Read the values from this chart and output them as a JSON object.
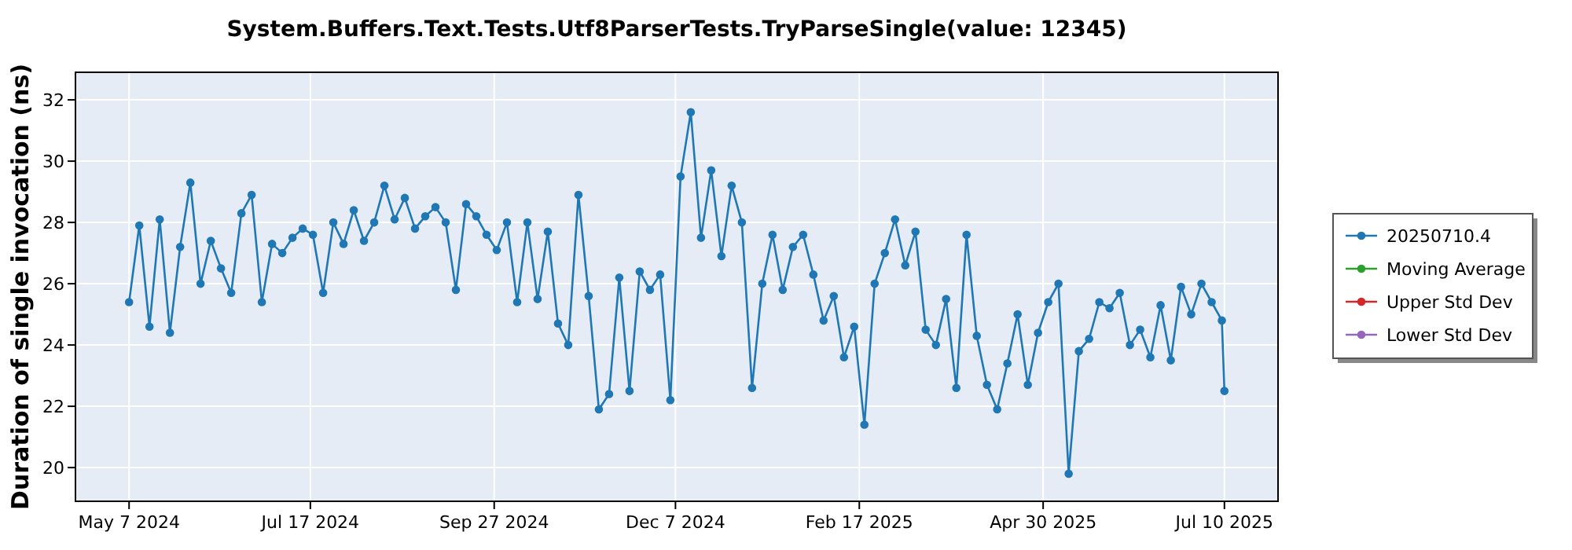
{
  "chart_data": {
    "type": "line",
    "title": "System.Buffers.Text.Tests.Utf8ParserTests.TryParseSingle(value: 12345)",
    "ylabel": "Duration of single invocation (ns)",
    "xlim": [
      "2024-04-16",
      "2025-07-31"
    ],
    "xticks": [
      {
        "value": "2024-05-07",
        "label": "May 7 2024"
      },
      {
        "value": "2024-07-17",
        "label": "Jul 17 2024"
      },
      {
        "value": "2024-09-27",
        "label": "Sep 27 2024"
      },
      {
        "value": "2024-12-07",
        "label": "Dec 7 2024"
      },
      {
        "value": "2025-02-17",
        "label": "Feb 17 2025"
      },
      {
        "value": "2025-04-30",
        "label": "Apr 30 2025"
      },
      {
        "value": "2025-07-10",
        "label": "Jul 10 2025"
      }
    ],
    "ylim": [
      18.9,
      32.9
    ],
    "yticks": [
      20,
      22,
      24,
      26,
      28,
      30,
      32
    ],
    "grid": true,
    "legend": "right",
    "marker": "circle",
    "series": [
      {
        "name": "20250710.4",
        "color": "#1f77b4",
        "x": [
          "2024-05-07",
          "2024-05-11",
          "2024-05-15",
          "2024-05-19",
          "2024-05-23",
          "2024-05-27",
          "2024-05-31",
          "2024-06-04",
          "2024-06-08",
          "2024-06-12",
          "2024-06-16",
          "2024-06-20",
          "2024-06-24",
          "2024-06-28",
          "2024-07-02",
          "2024-07-06",
          "2024-07-10",
          "2024-07-14",
          "2024-07-18",
          "2024-07-22",
          "2024-07-26",
          "2024-07-30",
          "2024-08-03",
          "2024-08-07",
          "2024-08-11",
          "2024-08-15",
          "2024-08-19",
          "2024-08-23",
          "2024-08-27",
          "2024-08-31",
          "2024-09-04",
          "2024-09-08",
          "2024-09-12",
          "2024-09-16",
          "2024-09-20",
          "2024-09-24",
          "2024-09-28",
          "2024-10-02",
          "2024-10-06",
          "2024-10-10",
          "2024-10-14",
          "2024-10-18",
          "2024-10-22",
          "2024-10-26",
          "2024-10-30",
          "2024-11-03",
          "2024-11-07",
          "2024-11-11",
          "2024-11-15",
          "2024-11-19",
          "2024-11-23",
          "2024-11-27",
          "2024-12-01",
          "2024-12-05",
          "2024-12-09",
          "2024-12-13",
          "2024-12-17",
          "2024-12-21",
          "2024-12-25",
          "2024-12-29",
          "2025-01-02",
          "2025-01-06",
          "2025-01-10",
          "2025-01-14",
          "2025-01-18",
          "2025-01-22",
          "2025-01-26",
          "2025-01-30",
          "2025-02-03",
          "2025-02-07",
          "2025-02-11",
          "2025-02-15",
          "2025-02-19",
          "2025-02-23",
          "2025-02-27",
          "2025-03-03",
          "2025-03-07",
          "2025-03-11",
          "2025-03-15",
          "2025-03-19",
          "2025-03-23",
          "2025-03-27",
          "2025-03-31",
          "2025-04-04",
          "2025-04-08",
          "2025-04-12",
          "2025-04-16",
          "2025-04-20",
          "2025-04-24",
          "2025-04-28",
          "2025-05-02",
          "2025-05-06",
          "2025-05-10",
          "2025-05-14",
          "2025-05-18",
          "2025-05-22",
          "2025-05-26",
          "2025-05-30",
          "2025-06-03",
          "2025-06-07",
          "2025-06-11",
          "2025-06-15",
          "2025-06-19",
          "2025-06-23",
          "2025-06-27",
          "2025-07-01",
          "2025-07-05",
          "2025-07-09",
          "2025-07-10"
        ],
        "values": [
          25.4,
          27.9,
          24.6,
          28.1,
          24.4,
          27.2,
          29.3,
          26.0,
          27.4,
          26.5,
          25.7,
          28.3,
          28.9,
          25.4,
          27.3,
          27.0,
          27.5,
          27.8,
          27.6,
          25.7,
          28.0,
          27.3,
          28.4,
          27.4,
          28.0,
          29.2,
          28.1,
          28.8,
          27.8,
          28.2,
          28.5,
          28.0,
          25.8,
          28.6,
          28.2,
          27.6,
          27.1,
          28.0,
          25.4,
          28.0,
          25.5,
          27.7,
          24.7,
          24.0,
          28.9,
          25.6,
          21.9,
          22.4,
          26.2,
          22.5,
          26.4,
          25.8,
          26.3,
          22.2,
          29.5,
          31.6,
          27.5,
          29.7,
          26.9,
          29.2,
          28.0,
          22.6,
          26.0,
          27.6,
          25.8,
          27.2,
          27.6,
          26.3,
          24.8,
          25.6,
          23.6,
          24.6,
          21.4,
          26.0,
          27.0,
          28.1,
          26.6,
          27.7,
          24.5,
          24.0,
          25.5,
          22.6,
          27.6,
          24.3,
          22.7,
          21.9,
          23.4,
          25.0,
          22.7,
          24.4,
          25.4,
          26.0,
          19.8,
          23.8,
          24.2,
          25.4,
          25.2,
          25.7,
          24.0,
          24.5,
          23.6,
          25.3,
          23.5,
          25.9,
          25.0,
          26.0,
          25.4,
          24.8,
          22.5
        ]
      },
      {
        "name": "Moving Average",
        "color": "#2ca02c"
      },
      {
        "name": "Upper Std Dev",
        "color": "#d62728"
      },
      {
        "name": "Lower Std Dev",
        "color": "#9467bd"
      }
    ]
  }
}
